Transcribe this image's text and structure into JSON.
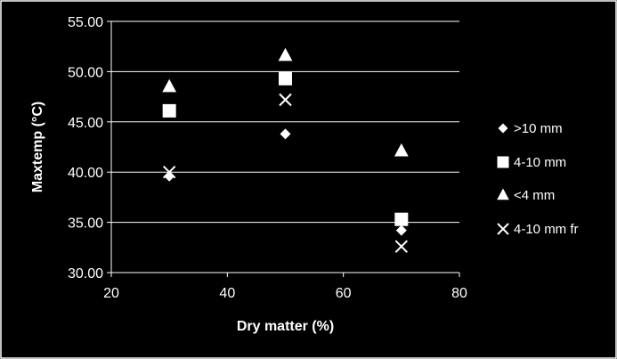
{
  "chart_data": {
    "type": "scatter",
    "xlabel": "Dry matter (%)",
    "ylabel": "Maxtemp (°C)",
    "xlim": [
      20,
      80
    ],
    "ylim": [
      30,
      55
    ],
    "x_ticks": [
      "20",
      "40",
      "60",
      "80"
    ],
    "y_ticks": [
      "30.00",
      "35.00",
      "40.00",
      "45.00",
      "50.00",
      "55.00"
    ],
    "grid": "horizontal",
    "legend_position": "right",
    "series": [
      {
        "name": ">10 mm",
        "marker": "diamond",
        "x": [
          30,
          50,
          70
        ],
        "y": [
          39.6,
          43.8,
          34.2
        ]
      },
      {
        "name": "4-10 mm",
        "marker": "square",
        "x": [
          30,
          50,
          70
        ],
        "y": [
          46.1,
          49.3,
          35.3
        ]
      },
      {
        "name": "<4 mm",
        "marker": "triangle",
        "x": [
          30,
          50,
          70
        ],
        "y": [
          48.5,
          51.6,
          42.1
        ]
      },
      {
        "name": "4-10 mm fr",
        "marker": "x",
        "x": [
          30,
          50,
          70
        ],
        "y": [
          40.0,
          47.2,
          32.6
        ]
      }
    ],
    "colors": {
      "background": "#000000",
      "foreground": "#ffffff",
      "grid": "#ffffff"
    }
  }
}
